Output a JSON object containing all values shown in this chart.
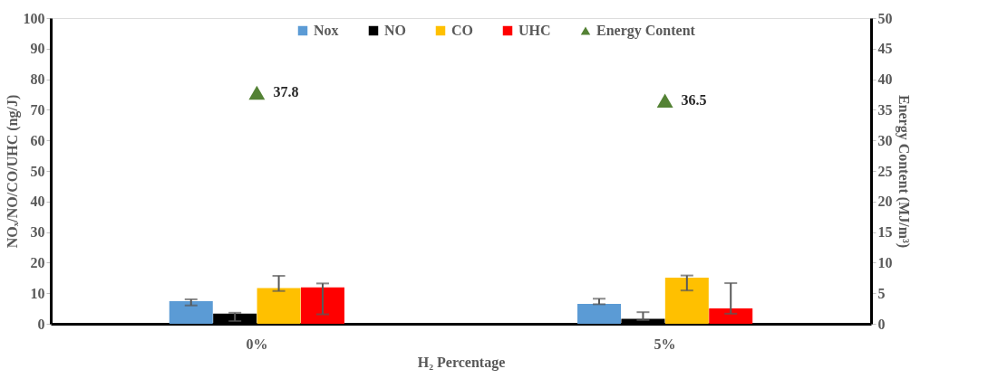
{
  "chart_data": {
    "type": "bar",
    "xlabel": "H₂ Percentage",
    "ylabel": "NOₓ/NO/CO/UHC (ng/J)",
    "y2label": "Energy Content (MJ/m³)",
    "categories": [
      "0%",
      "5%"
    ],
    "ylim": [
      0,
      100
    ],
    "yticks": [
      0,
      10,
      20,
      30,
      40,
      50,
      60,
      70,
      80,
      90,
      100
    ],
    "y2lim": [
      0,
      50
    ],
    "y2ticks": [
      0,
      5,
      10,
      15,
      20,
      25,
      30,
      35,
      40,
      45,
      50
    ],
    "grid": false,
    "legend": "top",
    "series": [
      {
        "name": "Nox",
        "color": "#5b9bd5",
        "values": [
          7.4,
          6.5
        ],
        "errors": [
          [
            6.0,
            8.0
          ],
          [
            6.4,
            8.2
          ]
        ]
      },
      {
        "name": "NO",
        "color": "#000000",
        "values": [
          3.3,
          1.6
        ],
        "errors": [
          [
            0.9,
            3.6
          ],
          [
            1.2,
            3.8
          ]
        ]
      },
      {
        "name": "CO",
        "color": "#ffc000",
        "values": [
          11.7,
          15.1
        ],
        "errors": [
          [
            10.7,
            15.7
          ],
          [
            10.9,
            15.8
          ]
        ]
      },
      {
        "name": "UHC",
        "color": "#ff0000",
        "values": [
          11.9,
          5.0
        ],
        "errors": [
          [
            3.1,
            13.2
          ],
          [
            3.3,
            13.3
          ]
        ]
      },
      {
        "name": "Energy Content",
        "color": "#548235",
        "type": "scatter",
        "axis": "y2",
        "marker": "triangle",
        "values": [
          37.8,
          36.5
        ],
        "value_labels": [
          "37.8",
          "36.5"
        ]
      }
    ]
  }
}
